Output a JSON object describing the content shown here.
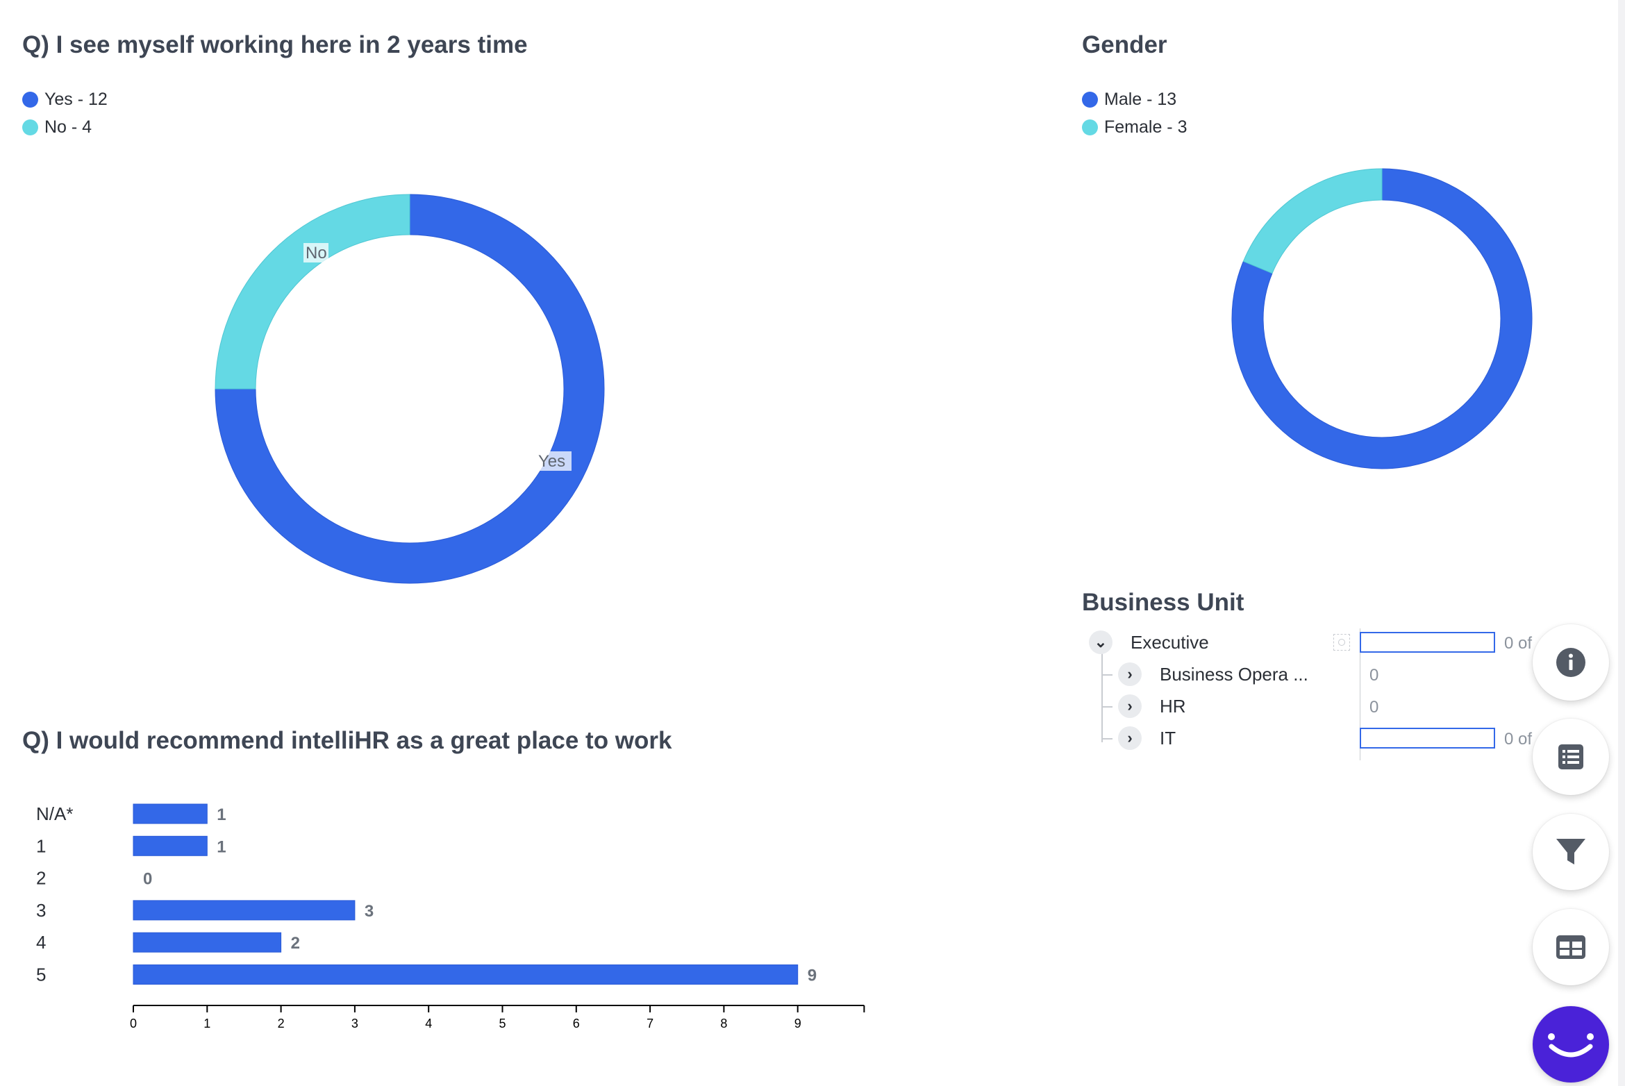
{
  "colors": {
    "primary": "#3368e8",
    "secondary": "#64d9e4",
    "text": "#3e4654",
    "bot": "#4a22d8"
  },
  "chart_data": [
    {
      "type": "pie",
      "title": "Q) I see myself working here in 2 years time",
      "categories": [
        "Yes",
        "No"
      ],
      "values": [
        12,
        4
      ],
      "legend": [
        "Yes - 12",
        "No - 4"
      ],
      "slice_labels": [
        "Yes",
        "No"
      ],
      "colors": [
        "#3368e8",
        "#64d9e4"
      ]
    },
    {
      "type": "pie",
      "title": "Gender",
      "categories": [
        "Male",
        "Female"
      ],
      "values": [
        13,
        3
      ],
      "legend": [
        "Male - 13",
        "Female - 3"
      ],
      "colors": [
        "#3368e8",
        "#64d9e4"
      ]
    },
    {
      "type": "bar",
      "orientation": "horizontal",
      "title": "Q) I would recommend intelliHR as a great place to work",
      "categories": [
        "N/A*",
        "1",
        "2",
        "3",
        "4",
        "5"
      ],
      "values": [
        1,
        1,
        0,
        3,
        2,
        9
      ],
      "xticks": [
        "0",
        "1",
        "2",
        "3",
        "4",
        "5",
        "6",
        "7",
        "8",
        "9"
      ],
      "xlim": [
        0,
        9.9
      ]
    }
  ],
  "business_unit": {
    "title": "Business Unit",
    "rows": [
      {
        "label": "Executive",
        "expanded": true,
        "value": "0 of",
        "has_bar": true
      },
      {
        "label": "Business Opera ...",
        "expanded": false,
        "value": "0",
        "has_bar": false
      },
      {
        "label": "HR",
        "expanded": false,
        "value": "0",
        "has_bar": false
      },
      {
        "label": "IT",
        "expanded": false,
        "value": "0 of",
        "has_bar": true
      }
    ]
  },
  "fab_icons": [
    "info-icon",
    "list-icon",
    "filter-icon",
    "table-icon",
    "chatbot-icon"
  ]
}
